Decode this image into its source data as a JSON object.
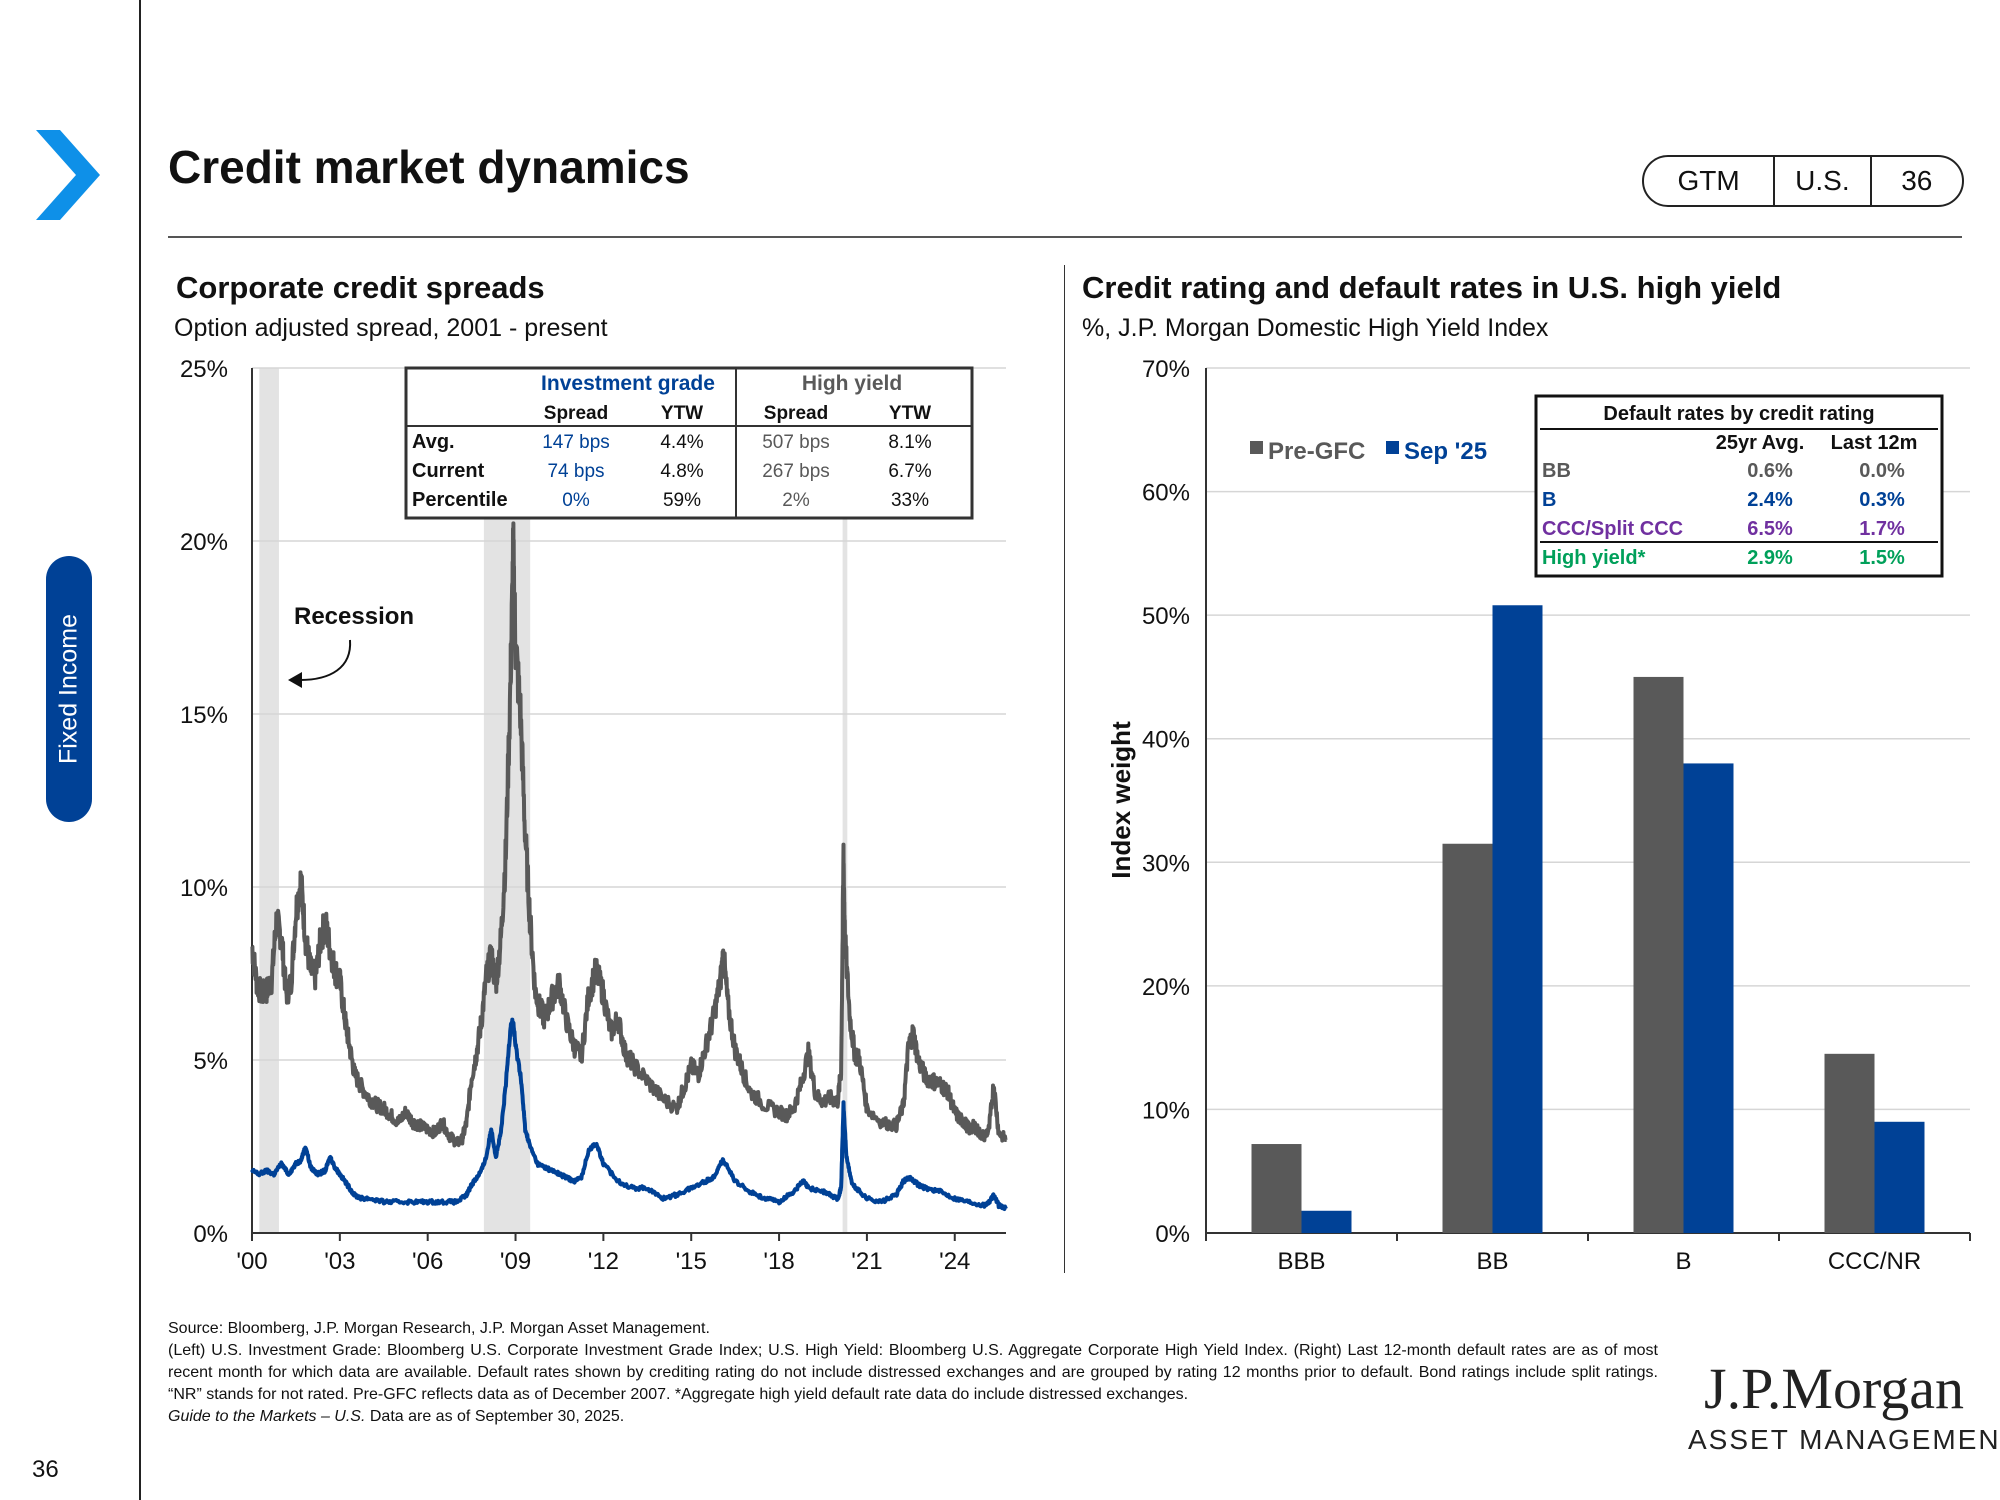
{
  "page": {
    "title": "Credit market dynamics",
    "tags": [
      "GTM",
      "U.S.",
      "36"
    ],
    "section_tab": "Fixed Income",
    "page_number": "36",
    "accent_color": "#004196"
  },
  "left_panel": {
    "title": "Corporate credit spreads",
    "subtitle": "Option adjusted spread, 2001 - present",
    "recession_label": "Recession",
    "table": {
      "ig_header": "Investment grade",
      "hy_header": "High yield",
      "col_headers": [
        "Spread",
        "YTW",
        "Spread",
        "YTW"
      ],
      "rows": [
        {
          "label": "Avg.",
          "ig_spread": "147 bps",
          "ig_ytw": "4.4%",
          "hy_spread": "507 bps",
          "hy_ytw": "8.1%"
        },
        {
          "label": "Current",
          "ig_spread": "74 bps",
          "ig_ytw": "4.8%",
          "hy_spread": "267 bps",
          "hy_ytw": "6.7%"
        },
        {
          "label": "Percentile",
          "ig_spread": "0%",
          "ig_ytw": "59%",
          "hy_spread": "2%",
          "hy_ytw": "33%"
        }
      ]
    }
  },
  "right_panel": {
    "title": "Credit rating and default rates in U.S. high yield",
    "subtitle": "%, J.P. Morgan Domestic High Yield Index",
    "table": {
      "title": "Default rates by credit rating",
      "col_headers": [
        "25yr Avg.",
        "Last 12m"
      ],
      "rows": [
        {
          "label": "BB",
          "avg": "0.6%",
          "last": "0.0%",
          "color": "#595959"
        },
        {
          "label": "B",
          "avg": "2.4%",
          "last": "0.3%",
          "color": "#004196"
        },
        {
          "label": "CCC/Split CCC",
          "avg": "6.5%",
          "last": "1.7%",
          "color": "#7030a0"
        },
        {
          "label": "High yield*",
          "avg": "2.9%",
          "last": "1.5%",
          "color": "#00a05a"
        }
      ]
    }
  },
  "chart_data": [
    {
      "type": "line",
      "title": "Corporate credit spreads",
      "subtitle": "Option adjusted spread, 2001 - present",
      "x_range": [
        2000,
        2025.75
      ],
      "ylim": [
        0,
        25
      ],
      "y_ticks": [
        "0%",
        "5%",
        "10%",
        "15%",
        "20%",
        "25%"
      ],
      "y_tick_values": [
        0,
        5,
        10,
        15,
        20,
        25
      ],
      "x_ticks": [
        "'00",
        "'03",
        "'06",
        "'09",
        "'12",
        "'15",
        "'18",
        "'21",
        "'24"
      ],
      "x_tick_values": [
        2000,
        2003,
        2006,
        2009,
        2012,
        2015,
        2018,
        2021,
        2024
      ],
      "grid": true,
      "recessions": [
        [
          2000.25,
          2000.92
        ],
        [
          2007.92,
          2009.5
        ],
        [
          2020.17,
          2020.33
        ]
      ],
      "series": [
        {
          "color": "#595959",
          "x": [
            2000.0,
            2000.17,
            2000.33,
            2000.5,
            2000.67,
            2000.83,
            2001.0,
            2001.17,
            2001.33,
            2001.5,
            2001.67,
            2001.83,
            2002.0,
            2002.17,
            2002.33,
            2002.5,
            2002.67,
            2002.83,
            2003.0,
            2003.17,
            2003.33,
            2003.5,
            2003.75,
            2004.0,
            2004.25,
            2004.5,
            2004.75,
            2005.0,
            2005.25,
            2005.5,
            2005.75,
            2006.0,
            2006.25,
            2006.5,
            2006.75,
            2007.0,
            2007.17,
            2007.33,
            2007.5,
            2007.67,
            2007.83,
            2008.0,
            2008.17,
            2008.33,
            2008.5,
            2008.67,
            2008.83,
            2008.92,
            2009.0,
            2009.17,
            2009.33,
            2009.5,
            2009.67,
            2009.83,
            2010.0,
            2010.25,
            2010.5,
            2010.75,
            2011.0,
            2011.25,
            2011.5,
            2011.75,
            2012.0,
            2012.25,
            2012.5,
            2012.75,
            2013.0,
            2013.5,
            2014.0,
            2014.5,
            2014.75,
            2015.0,
            2015.25,
            2015.5,
            2015.75,
            2016.0,
            2016.1,
            2016.25,
            2016.5,
            2016.75,
            2017.0,
            2017.5,
            2018.0,
            2018.25,
            2018.5,
            2018.75,
            2019.0,
            2019.25,
            2019.5,
            2019.75,
            2020.0,
            2020.12,
            2020.2,
            2020.25,
            2020.42,
            2020.58,
            2020.75,
            2021.0,
            2021.5,
            2022.0,
            2022.25,
            2022.42,
            2022.58,
            2022.75,
            2023.0,
            2023.25,
            2023.5,
            2023.75,
            2024.0,
            2024.17,
            2024.33,
            2024.5,
            2024.67,
            2024.83,
            2025.0,
            2025.17,
            2025.33,
            2025.5,
            2025.75
          ],
          "values": [
            8.3,
            7.2,
            6.9,
            7.0,
            7.3,
            9.0,
            8.6,
            6.9,
            7.2,
            9.3,
            10.2,
            8.5,
            7.6,
            7.4,
            8.4,
            9.0,
            8.2,
            7.6,
            7.3,
            6.2,
            5.4,
            4.6,
            4.2,
            3.9,
            3.7,
            3.6,
            3.4,
            3.2,
            3.5,
            3.2,
            3.1,
            3.0,
            2.9,
            3.2,
            2.8,
            2.6,
            2.7,
            3.2,
            4.5,
            5.2,
            6.1,
            7.4,
            8.0,
            7.2,
            8.5,
            11.0,
            16.0,
            19.7,
            17.0,
            15.0,
            11.5,
            9.0,
            7.0,
            6.5,
            6.2,
            6.8,
            7.2,
            6.1,
            5.4,
            5.1,
            6.9,
            7.6,
            6.9,
            5.8,
            6.2,
            5.2,
            4.9,
            4.4,
            3.9,
            3.6,
            4.2,
            4.8,
            4.6,
            5.4,
            6.2,
            7.3,
            8.1,
            6.6,
            5.3,
            4.7,
            4.1,
            3.7,
            3.5,
            3.4,
            3.6,
            4.3,
            5.2,
            4.0,
            3.8,
            3.9,
            3.8,
            4.7,
            10.9,
            8.5,
            6.2,
            5.2,
            5.0,
            3.6,
            3.2,
            3.1,
            3.7,
            5.4,
            5.8,
            5.0,
            4.5,
            4.4,
            4.3,
            4.1,
            3.5,
            3.3,
            3.2,
            3.0,
            3.1,
            2.9,
            2.8,
            3.0,
            4.3,
            2.9,
            2.7
          ]
        },
        {
          "color": "#004196",
          "x": [
            2000.0,
            2000.25,
            2000.5,
            2000.75,
            2001.0,
            2001.25,
            2001.5,
            2001.67,
            2001.83,
            2002.0,
            2002.25,
            2002.5,
            2002.67,
            2002.83,
            2003.0,
            2003.25,
            2003.5,
            2003.75,
            2004.0,
            2004.5,
            2005.0,
            2005.5,
            2006.0,
            2006.5,
            2007.0,
            2007.33,
            2007.5,
            2007.67,
            2007.83,
            2008.0,
            2008.17,
            2008.33,
            2008.5,
            2008.67,
            2008.83,
            2008.92,
            2009.0,
            2009.17,
            2009.33,
            2009.5,
            2009.75,
            2010.0,
            2010.25,
            2010.5,
            2010.75,
            2011.0,
            2011.25,
            2011.5,
            2011.75,
            2012.0,
            2012.5,
            2013.0,
            2013.5,
            2014.0,
            2014.5,
            2015.0,
            2015.5,
            2015.75,
            2016.0,
            2016.1,
            2016.5,
            2017.0,
            2017.5,
            2018.0,
            2018.5,
            2018.83,
            2019.0,
            2019.5,
            2019.75,
            2020.0,
            2020.12,
            2020.2,
            2020.3,
            2020.5,
            2020.75,
            2021.0,
            2021.5,
            2022.0,
            2022.25,
            2022.5,
            2022.75,
            2023.0,
            2023.5,
            2024.0,
            2024.5,
            2025.0,
            2025.17,
            2025.33,
            2025.5,
            2025.75
          ],
          "values": [
            1.8,
            1.7,
            1.8,
            1.7,
            2.0,
            1.7,
            2.0,
            2.1,
            2.5,
            1.9,
            1.7,
            1.8,
            2.2,
            1.9,
            1.7,
            1.4,
            1.1,
            1.0,
            1.0,
            0.9,
            0.9,
            0.9,
            0.9,
            0.9,
            0.9,
            1.1,
            1.4,
            1.6,
            1.8,
            2.2,
            3.0,
            2.2,
            2.9,
            4.3,
            6.0,
            6.1,
            5.4,
            4.6,
            3.0,
            2.5,
            2.0,
            1.9,
            1.8,
            1.7,
            1.6,
            1.5,
            1.6,
            2.4,
            2.6,
            2.0,
            1.5,
            1.3,
            1.3,
            1.0,
            1.1,
            1.3,
            1.5,
            1.6,
            2.0,
            2.1,
            1.5,
            1.2,
            1.0,
            0.9,
            1.2,
            1.5,
            1.3,
            1.2,
            1.1,
            1.0,
            1.3,
            3.7,
            2.2,
            1.4,
            1.2,
            1.0,
            0.9,
            1.1,
            1.5,
            1.6,
            1.4,
            1.3,
            1.2,
            1.0,
            0.9,
            0.8,
            0.9,
            1.1,
            0.8,
            0.7
          ]
        }
      ]
    },
    {
      "type": "bar",
      "title": "Credit rating and default rates in U.S. high yield",
      "subtitle": "%, J.P. Morgan Domestic High Yield Index",
      "ylabel": "Index weight",
      "ylim": [
        0,
        70
      ],
      "y_ticks": [
        "0%",
        "10%",
        "20%",
        "30%",
        "40%",
        "50%",
        "60%",
        "70%"
      ],
      "y_tick_values": [
        0,
        10,
        20,
        30,
        40,
        50,
        60,
        70
      ],
      "categories": [
        "BBB",
        "BB",
        "B",
        "CCC/NR"
      ],
      "grid": true,
      "legend_position": "top-left",
      "series": [
        {
          "name": "Pre-GFC",
          "color": "#595959",
          "values": [
            7.2,
            31.5,
            45.0,
            14.5
          ]
        },
        {
          "name": "Sep '25",
          "color": "#004196",
          "values": [
            1.8,
            50.8,
            38.0,
            9.0
          ]
        }
      ]
    }
  ],
  "footnote": {
    "source": "Source: Bloomberg, J.P. Morgan Research, J.P. Morgan Asset Management.",
    "body": "(Left) U.S. Investment Grade: Bloomberg U.S. Corporate Investment Grade Index; U.S. High Yield: Bloomberg U.S. Aggregate Corporate High Yield Index. (Right) Last 12-month default rates are as of most recent month for which data are available. Default rates shown by crediting rating do not include distressed exchanges and are grouped by rating 12 months prior to default. Bond ratings include split ratings. “NR” stands for not rated. Pre-GFC reflects data as of December 2007. *Aggregate high yield default rate data do include distressed exchanges.",
    "guide_italic": "Guide to the Markets – U.S.",
    "guide_rest": " Data are as of September 30, 2025."
  },
  "logo": {
    "name": "J.P.Morgan",
    "tagline": "ASSET MANAGEMENT"
  }
}
